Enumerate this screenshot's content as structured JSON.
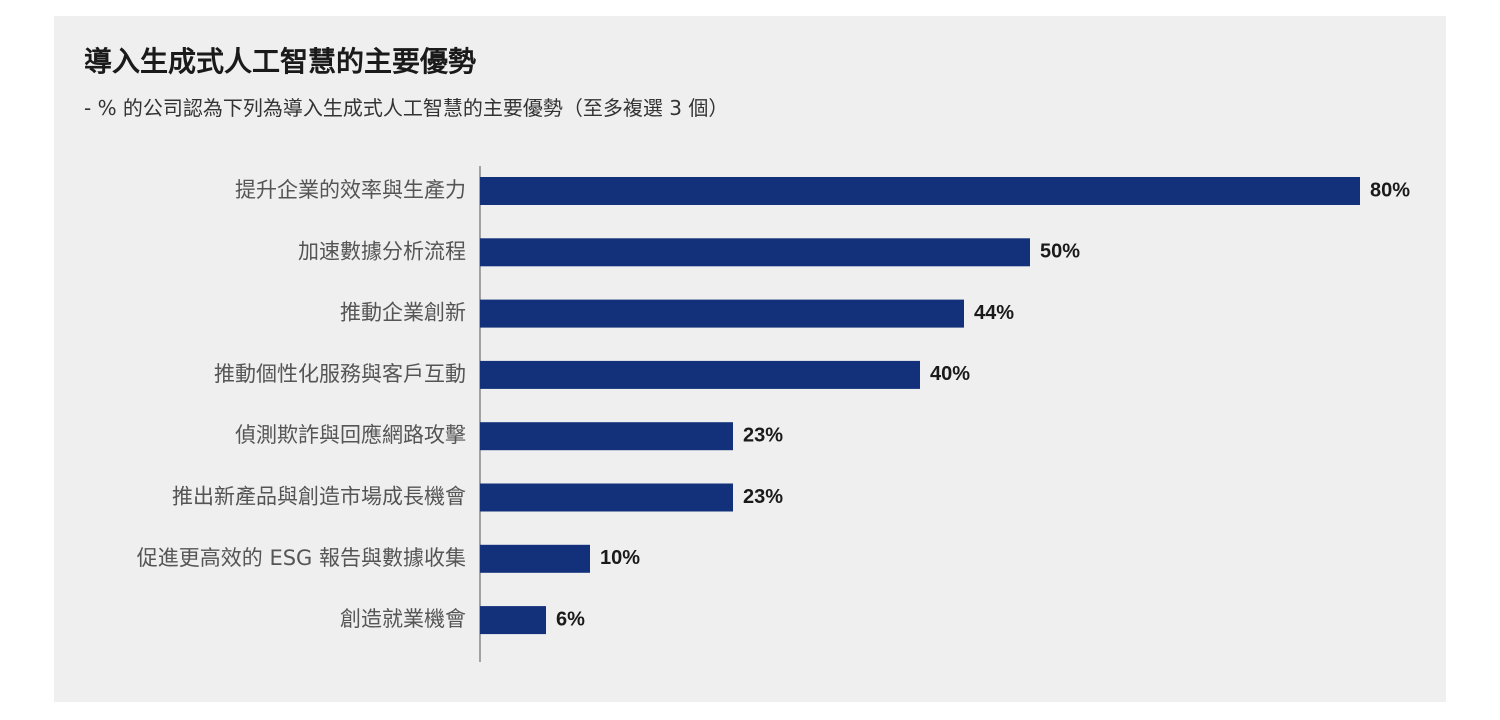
{
  "chart_data": {
    "type": "bar",
    "orientation": "horizontal",
    "title": "導入生成式人工智慧的主要優勢",
    "subtitle": "- % 的公司認為下列為導入生成式人工智慧的主要優勢（至多複選 3 個）",
    "categories": [
      "提升企業的效率與生產力",
      "加速數據分析流程",
      "推動企業創新",
      "推動個性化服務與客戶互動",
      "偵測欺詐與回應網路攻擊",
      "推出新產品與創造市場成長機會",
      "促進更高效的 ESG 報告與數據收集",
      "創造就業機會"
    ],
    "values": [
      80,
      50,
      44,
      40,
      23,
      23,
      10,
      6
    ],
    "value_labels": [
      "80%",
      "50%",
      "44%",
      "40%",
      "23%",
      "23%",
      "10%",
      "6%"
    ],
    "unit": "%",
    "xlim": [
      0,
      80
    ],
    "bar_color": "#12317a",
    "grid": false,
    "legend": "none"
  }
}
